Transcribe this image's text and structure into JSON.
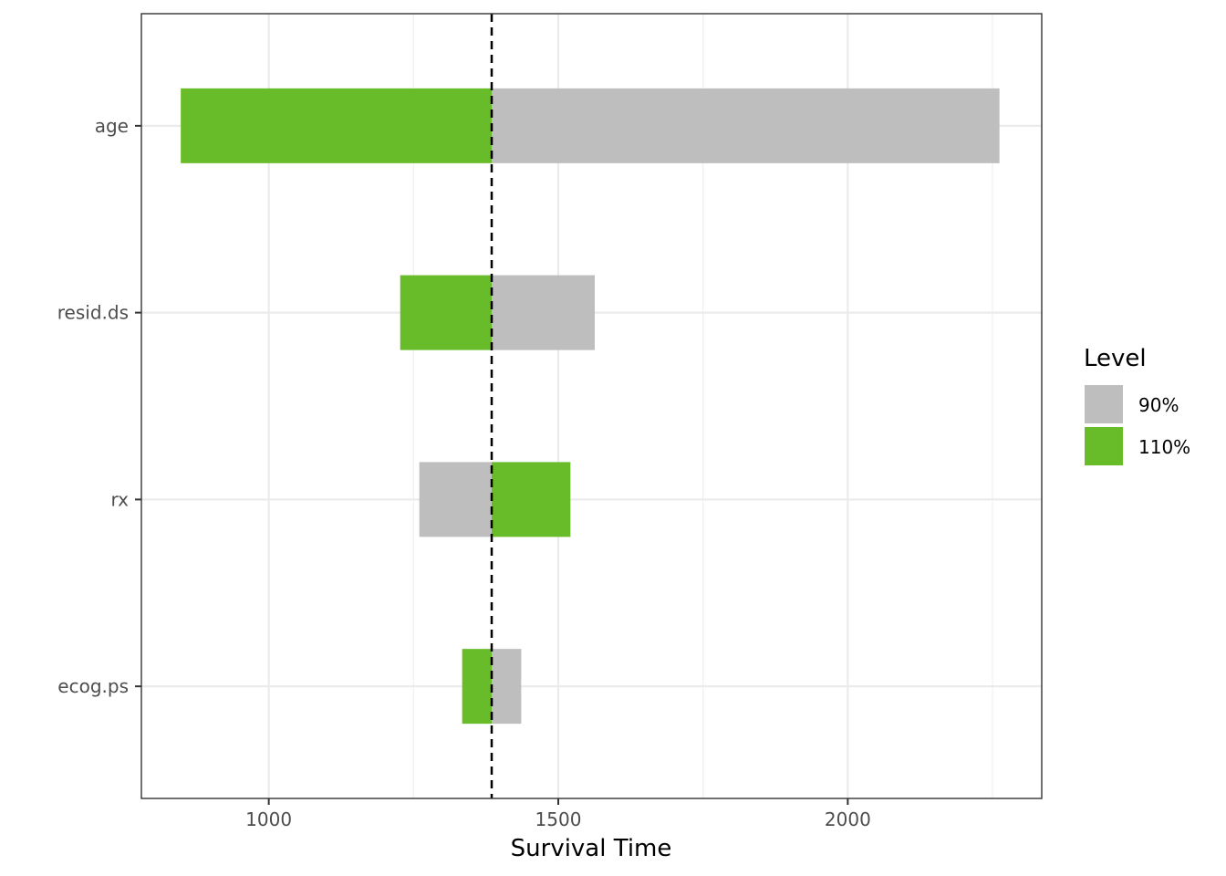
{
  "chart_data": {
    "type": "bar",
    "orientation": "horizontal",
    "xlabel": "Survival Time",
    "ylabel": "",
    "xlim": [
      780,
      2335
    ],
    "x_ticks": [
      1000,
      1500,
      2000
    ],
    "x_tick_labels": [
      "1000",
      "1500",
      "2000"
    ],
    "baseline": 1385,
    "categories": [
      "age",
      "resid.ds",
      "rx",
      "ecog.ps"
    ],
    "series": [
      {
        "name": "90%",
        "color": "#bebebe",
        "values": [
          2262,
          1563,
          1260,
          1436
        ]
      },
      {
        "name": "110%",
        "color": "#69bc29",
        "values": [
          848,
          1227,
          1521,
          1334
        ]
      }
    ],
    "legend": {
      "title": "Level",
      "position": "right"
    },
    "grid": true
  }
}
